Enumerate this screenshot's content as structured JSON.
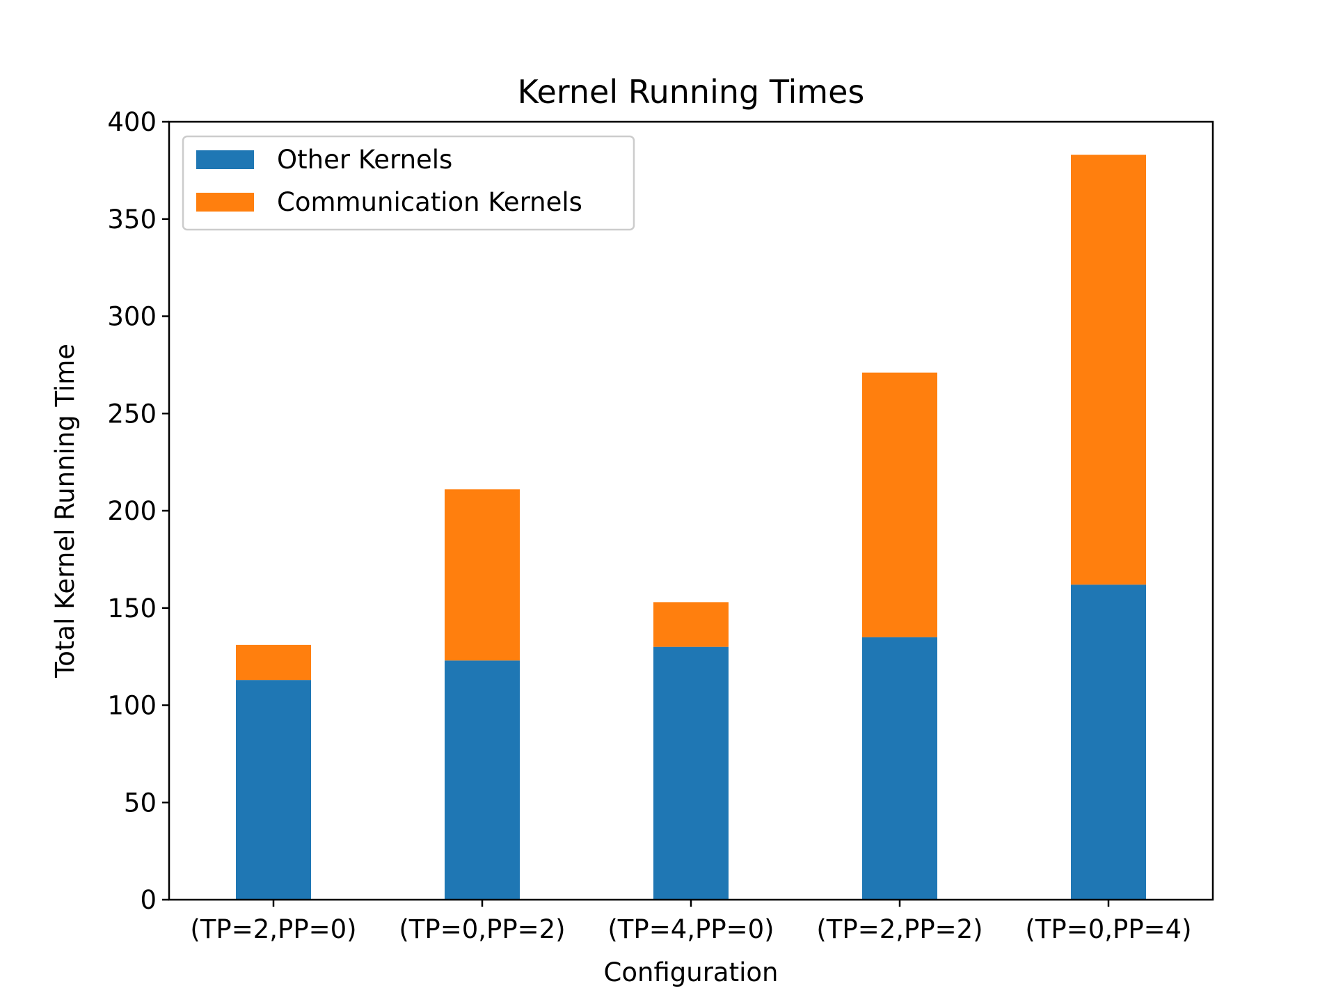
{
  "chart_data": {
    "type": "bar",
    "stacked": true,
    "title": "Kernel Running Times",
    "xlabel": "Configuration",
    "ylabel": "Total Kernel Running Time",
    "categories": [
      "(TP=2,PP=0)",
      "(TP=0,PP=2)",
      "(TP=4,PP=0)",
      "(TP=2,PP=2)",
      "(TP=0,PP=4)"
    ],
    "series": [
      {
        "name": "Other Kernels",
        "color": "#1f77b4",
        "values": [
          113,
          123,
          130,
          135,
          162
        ]
      },
      {
        "name": "Communication Kernels",
        "color": "#ff7f0e",
        "values": [
          18,
          88,
          23,
          136,
          221
        ]
      }
    ],
    "ylim": [
      0,
      400
    ],
    "yticks": [
      0,
      50,
      100,
      150,
      200,
      250,
      300,
      350,
      400
    ],
    "grid": false,
    "legend_position": "top-left"
  }
}
